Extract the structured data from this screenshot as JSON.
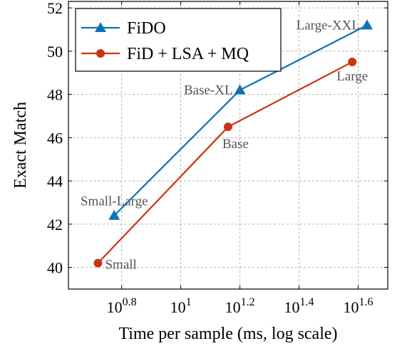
{
  "chart_data": {
    "type": "line",
    "xlabel": "Time per sample (ms, log scale)",
    "ylabel": "Exact Match",
    "xscale": "log10",
    "xlim_log10": [
      0.62,
      1.7
    ],
    "ylim": [
      39.0,
      52.3
    ],
    "x_ticks": [
      {
        "log10": 0.8,
        "base": "10",
        "exp": "0.8"
      },
      {
        "log10": 1.0,
        "base": "10",
        "exp": "1"
      },
      {
        "log10": 1.2,
        "base": "10",
        "exp": "1.2"
      },
      {
        "log10": 1.4,
        "base": "10",
        "exp": "1.4"
      },
      {
        "log10": 1.6,
        "base": "10",
        "exp": "1.6"
      }
    ],
    "y_ticks": [
      40,
      42,
      44,
      46,
      48,
      50,
      52
    ],
    "grid": true,
    "legend_position": "top-left",
    "series": [
      {
        "name": "FiDO",
        "color": "#0b72b6",
        "marker": "triangle",
        "points": [
          {
            "log10x": 0.775,
            "y": 42.4,
            "label": "Small-Large",
            "label_pos": "above"
          },
          {
            "log10x": 1.2,
            "y": 48.2,
            "label": "Base-XL",
            "label_pos": "left"
          },
          {
            "log10x": 1.63,
            "y": 51.2,
            "label": "Large-XXL",
            "label_pos": "left"
          }
        ]
      },
      {
        "name": "FiD + LSA + MQ",
        "color": "#cc3311",
        "marker": "circle",
        "points": [
          {
            "log10x": 0.72,
            "y": 40.2,
            "label": "Small",
            "label_pos": "right"
          },
          {
            "log10x": 1.16,
            "y": 46.5,
            "label": "Base",
            "label_pos": "below-right"
          },
          {
            "log10x": 1.58,
            "y": 49.5,
            "label": "Large",
            "label_pos": "below"
          }
        ]
      }
    ]
  }
}
